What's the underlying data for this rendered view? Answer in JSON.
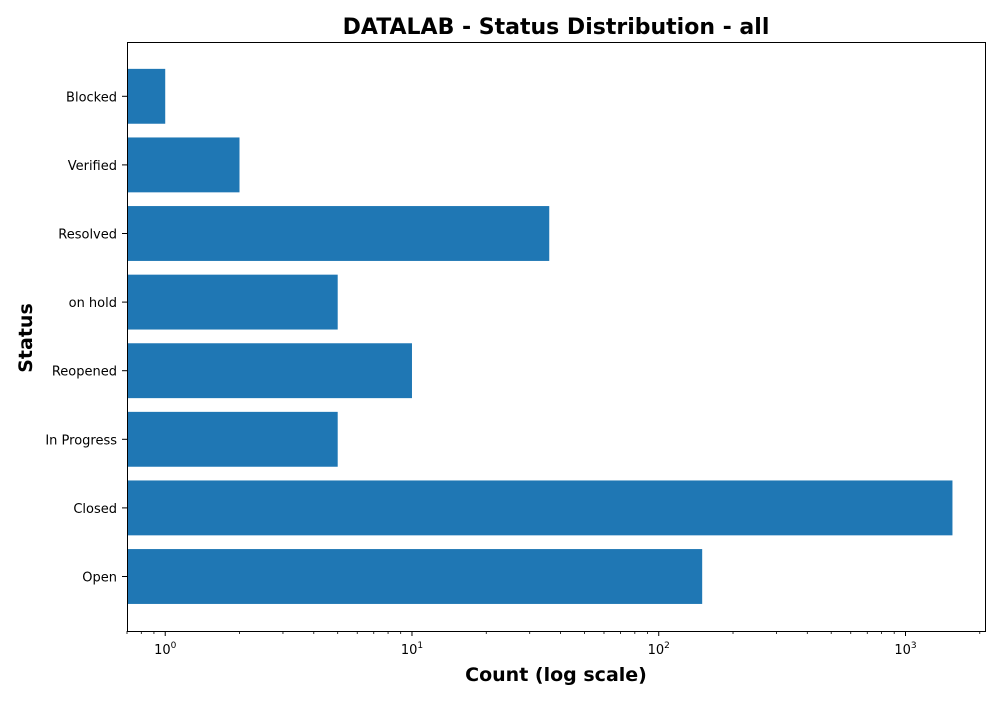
{
  "chart_data": {
    "type": "bar",
    "orientation": "horizontal",
    "title": "DATALAB - Status Distribution - all",
    "xlabel": "Count (log scale)",
    "ylabel": "Status",
    "xscale": "log",
    "xlim": [
      0.7,
      2100
    ],
    "x_ticks": [
      {
        "base": "10",
        "exp": "0",
        "value": 1
      },
      {
        "base": "10",
        "exp": "1",
        "value": 10
      },
      {
        "base": "10",
        "exp": "2",
        "value": 100
      },
      {
        "base": "10",
        "exp": "3",
        "value": 1000
      }
    ],
    "categories": [
      "Open",
      "Closed",
      "In Progress",
      "Reopened",
      "on hold",
      "Resolved",
      "Verified",
      "Blocked"
    ],
    "values": [
      150,
      1550,
      5,
      10,
      5,
      36,
      2,
      1
    ],
    "bar_color": "#1f77b4",
    "grid": false,
    "legend": false
  }
}
